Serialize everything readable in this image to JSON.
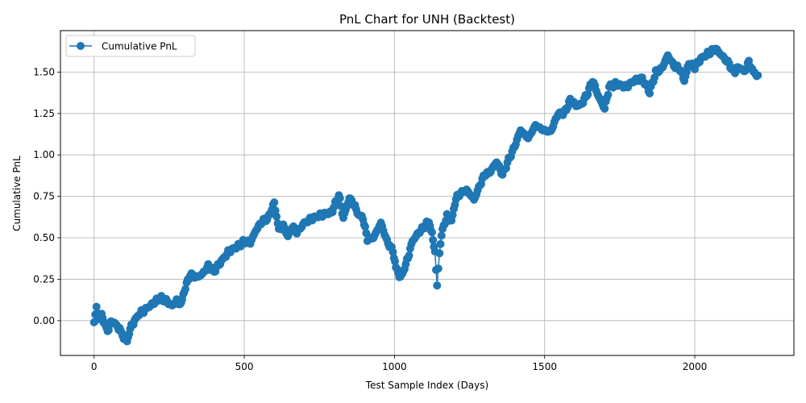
{
  "chart_data": {
    "type": "line",
    "title": "PnL Chart for UNH (Backtest)",
    "xlabel": "Test Sample Index (Days)",
    "ylabel": "Cumulative PnL",
    "xlim": [
      -112,
      2330
    ],
    "ylim": [
      -0.21,
      1.75
    ],
    "xticks": [
      0,
      500,
      1000,
      1500,
      2000
    ],
    "xtick_labels": [
      "0",
      "500",
      "1000",
      "1500",
      "2000"
    ],
    "yticks": [
      0.0,
      0.25,
      0.5,
      0.75,
      1.0,
      1.25,
      1.5
    ],
    "ytick_labels": [
      "0.00",
      "0.25",
      "0.50",
      "0.75",
      "1.00",
      "1.25",
      "1.50"
    ],
    "grid": true,
    "legend": {
      "position": "top-left",
      "entries": [
        "Cumulative PnL"
      ]
    },
    "marker": "circle",
    "color": "#1f77b4",
    "series": [
      {
        "name": "Cumulative PnL",
        "keypoints": [
          [
            0,
            -0.01
          ],
          [
            8,
            0.08
          ],
          [
            15,
            0.02
          ],
          [
            25,
            0.04
          ],
          [
            35,
            -0.02
          ],
          [
            45,
            -0.06
          ],
          [
            60,
            0.0
          ],
          [
            75,
            -0.03
          ],
          [
            85,
            -0.05
          ],
          [
            95,
            -0.09
          ],
          [
            110,
            -0.12
          ],
          [
            120,
            -0.05
          ],
          [
            135,
            0.0
          ],
          [
            150,
            0.04
          ],
          [
            165,
            0.06
          ],
          [
            180,
            0.08
          ],
          [
            200,
            0.11
          ],
          [
            220,
            0.14
          ],
          [
            240,
            0.12
          ],
          [
            260,
            0.09
          ],
          [
            275,
            0.12
          ],
          [
            290,
            0.1
          ],
          [
            300,
            0.18
          ],
          [
            320,
            0.28
          ],
          [
            340,
            0.26
          ],
          [
            360,
            0.28
          ],
          [
            380,
            0.33
          ],
          [
            400,
            0.3
          ],
          [
            420,
            0.35
          ],
          [
            450,
            0.42
          ],
          [
            480,
            0.45
          ],
          [
            500,
            0.48
          ],
          [
            520,
            0.47
          ],
          [
            540,
            0.55
          ],
          [
            560,
            0.6
          ],
          [
            580,
            0.62
          ],
          [
            600,
            0.71
          ],
          [
            615,
            0.55
          ],
          [
            630,
            0.57
          ],
          [
            645,
            0.51
          ],
          [
            660,
            0.57
          ],
          [
            675,
            0.53
          ],
          [
            700,
            0.59
          ],
          [
            730,
            0.62
          ],
          [
            760,
            0.64
          ],
          [
            790,
            0.65
          ],
          [
            815,
            0.76
          ],
          [
            830,
            0.62
          ],
          [
            850,
            0.74
          ],
          [
            865,
            0.7
          ],
          [
            880,
            0.64
          ],
          [
            895,
            0.62
          ],
          [
            910,
            0.49
          ],
          [
            930,
            0.5
          ],
          [
            955,
            0.59
          ],
          [
            975,
            0.48
          ],
          [
            995,
            0.42
          ],
          [
            1005,
            0.32
          ],
          [
            1020,
            0.26
          ],
          [
            1030,
            0.3
          ],
          [
            1045,
            0.38
          ],
          [
            1060,
            0.48
          ],
          [
            1080,
            0.53
          ],
          [
            1100,
            0.57
          ],
          [
            1115,
            0.6
          ],
          [
            1125,
            0.52
          ],
          [
            1135,
            0.42
          ],
          [
            1142,
            0.2
          ],
          [
            1150,
            0.42
          ],
          [
            1160,
            0.55
          ],
          [
            1175,
            0.63
          ],
          [
            1190,
            0.6
          ],
          [
            1205,
            0.74
          ],
          [
            1220,
            0.77
          ],
          [
            1240,
            0.79
          ],
          [
            1265,
            0.73
          ],
          [
            1285,
            0.82
          ],
          [
            1300,
            0.88
          ],
          [
            1320,
            0.9
          ],
          [
            1340,
            0.96
          ],
          [
            1360,
            0.88
          ],
          [
            1380,
            0.97
          ],
          [
            1400,
            1.05
          ],
          [
            1420,
            1.15
          ],
          [
            1445,
            1.1
          ],
          [
            1470,
            1.18
          ],
          [
            1495,
            1.15
          ],
          [
            1520,
            1.14
          ],
          [
            1545,
            1.25
          ],
          [
            1565,
            1.25
          ],
          [
            1585,
            1.33
          ],
          [
            1605,
            1.3
          ],
          [
            1620,
            1.3
          ],
          [
            1640,
            1.36
          ],
          [
            1660,
            1.45
          ],
          [
            1680,
            1.35
          ],
          [
            1700,
            1.28
          ],
          [
            1715,
            1.41
          ],
          [
            1740,
            1.43
          ],
          [
            1770,
            1.41
          ],
          [
            1800,
            1.45
          ],
          [
            1825,
            1.46
          ],
          [
            1850,
            1.38
          ],
          [
            1870,
            1.5
          ],
          [
            1890,
            1.52
          ],
          [
            1910,
            1.6
          ],
          [
            1930,
            1.54
          ],
          [
            1950,
            1.52
          ],
          [
            1965,
            1.45
          ],
          [
            1980,
            1.55
          ],
          [
            2000,
            1.53
          ],
          [
            2020,
            1.58
          ],
          [
            2050,
            1.62
          ],
          [
            2070,
            1.64
          ],
          [
            2090,
            1.6
          ],
          [
            2110,
            1.56
          ],
          [
            2130,
            1.5
          ],
          [
            2150,
            1.53
          ],
          [
            2165,
            1.5
          ],
          [
            2180,
            1.56
          ],
          [
            2195,
            1.5
          ],
          [
            2210,
            1.48
          ]
        ]
      }
    ]
  }
}
